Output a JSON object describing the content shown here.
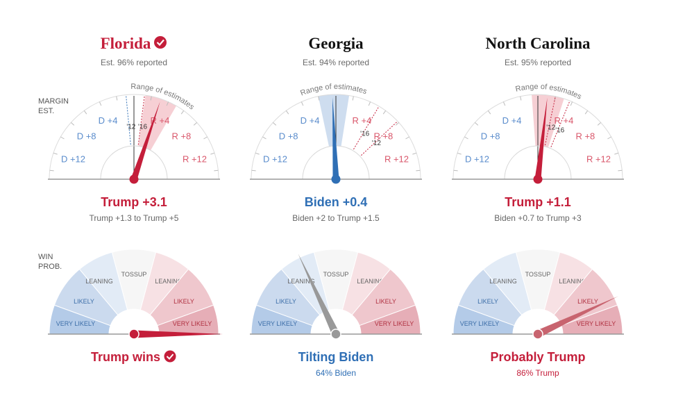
{
  "margin_axis_label": [
    "MARGIN",
    "EST."
  ],
  "prob_axis_label": [
    "WIN",
    "PROB."
  ],
  "margin_ticks": [
    {
      "label": "D +12",
      "value": -12
    },
    {
      "label": "D +8",
      "value": -8
    },
    {
      "label": "D +4",
      "value": -4
    },
    {
      "label": "R +4",
      "value": 4
    },
    {
      "label": "R +8",
      "value": 8
    },
    {
      "label": "R +12",
      "value": 12
    }
  ],
  "range_label": "Range of estimates",
  "prob_zones": [
    "VERY LIKELY",
    "LIKELY",
    "LEANING",
    "TOSSUP",
    "LEANING",
    "LIKELY",
    "VERY LIKELY"
  ],
  "colors": {
    "republican": "#c41e3a",
    "democrat": "#2f6fb5",
    "neutral": "#999999",
    "rep_light": "#f4c7cc",
    "dem_light": "#c6d7ec",
    "text_dark": "#121212",
    "tick_dem": "#5a8ccc",
    "tick_rep": "#d9576b"
  },
  "chart_data": [
    {
      "type": "gauge",
      "state": "Florida",
      "called": true,
      "reported": "Est. 96% reported",
      "margin_estimate": 3.1,
      "margin_low": 1.3,
      "margin_high": 5,
      "margin_headline": "Trump +3.1",
      "margin_range_text": "Trump +1.3 to Trump +5",
      "past_results": [
        {
          "label": "'12",
          "value": -0.9
        },
        {
          "label": "'16",
          "value": 1.2
        }
      ],
      "win_probability_trump": 100,
      "needle_color": "republican",
      "outcome_headline": "Trump wins",
      "outcome_sub": "",
      "outcome_color": "republican"
    },
    {
      "type": "gauge",
      "state": "Georgia",
      "called": false,
      "reported": "Est. 94% reported",
      "margin_estimate": -0.4,
      "margin_low": -2,
      "margin_high": 1.5,
      "margin_headline": "Biden +0.4",
      "margin_range_text": "Biden +2 to Trump +1.5",
      "past_results": [
        {
          "label": "'16",
          "value": 5.1
        },
        {
          "label": "'12",
          "value": 7.8
        }
      ],
      "win_probability_trump": 36,
      "needle_color": "democrat",
      "outcome_headline": "Tilting Biden",
      "outcome_sub": "64% Biden",
      "outcome_color": "democrat"
    },
    {
      "type": "gauge",
      "state": "North Carolina",
      "called": false,
      "reported": "Est. 95% reported",
      "margin_estimate": 1.1,
      "margin_low": -0.7,
      "margin_high": 3,
      "margin_headline": "Trump +1.1",
      "margin_range_text": "Biden +0.7 to Trump +3",
      "past_results": [
        {
          "label": "'12",
          "value": 2.0
        },
        {
          "label": "'16",
          "value": 3.7
        }
      ],
      "win_probability_trump": 86,
      "needle_color": "republican",
      "outcome_headline": "Probably Trump",
      "outcome_sub": "86% Trump",
      "outcome_color": "republican"
    }
  ]
}
